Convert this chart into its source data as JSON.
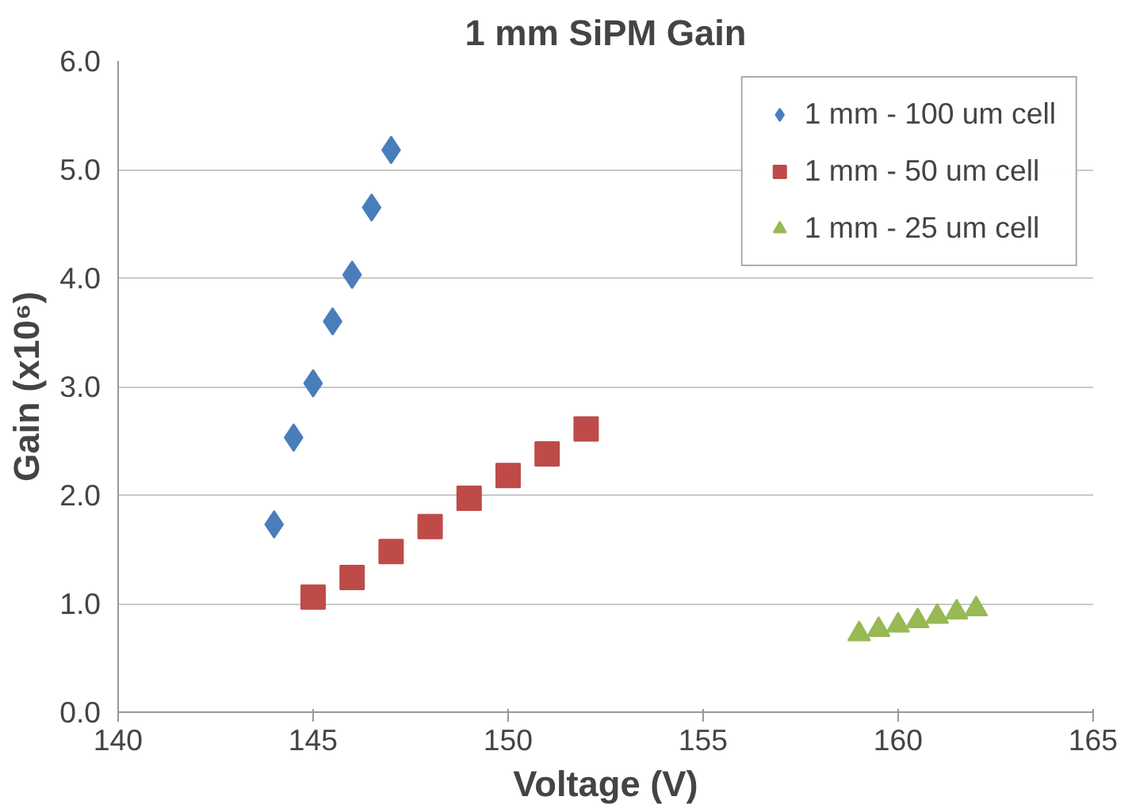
{
  "chart_data": {
    "type": "scatter",
    "title": "1 mm SiPM Gain",
    "xlabel": "Voltage (V)",
    "ylabel": "Gain (x10⁶)",
    "xlim": [
      140,
      165
    ],
    "xticks": [
      140,
      145,
      150,
      155,
      160,
      165
    ],
    "ylim": [
      0,
      6
    ],
    "yticks": [
      {
        "value": 0,
        "label": "0.0"
      },
      {
        "value": 1,
        "label": "1.0"
      },
      {
        "value": 2,
        "label": "2.0"
      },
      {
        "value": 3,
        "label": "3.0"
      },
      {
        "value": 4,
        "label": "4.0"
      },
      {
        "value": 5,
        "label": "5.0"
      },
      {
        "value": 6,
        "label": "6.0"
      }
    ],
    "grid": "y",
    "legend": "top right",
    "series": [
      {
        "name": "1 mm - 100 um cell",
        "color": "#4a7ebb",
        "marker": "diamond",
        "x": [
          144,
          144.5,
          145,
          145.5,
          146,
          146.5,
          147
        ],
        "values": [
          1.73,
          2.53,
          3.03,
          3.6,
          4.03,
          4.65,
          5.18
        ]
      },
      {
        "name": "1 mm - 50 um cell",
        "color": "#be4b48",
        "marker": "square",
        "x": [
          145,
          146,
          147,
          148,
          149,
          150,
          151,
          152
        ],
        "values": [
          1.06,
          1.24,
          1.48,
          1.71,
          1.97,
          2.18,
          2.38,
          2.61
        ]
      },
      {
        "name": "1 mm - 25 um cell",
        "color": "#98b954",
        "marker": "triangle",
        "x": [
          159,
          159.5,
          160,
          160.5,
          161,
          161.5,
          162
        ],
        "values": [
          0.72,
          0.76,
          0.8,
          0.84,
          0.88,
          0.92,
          0.95
        ]
      }
    ]
  }
}
